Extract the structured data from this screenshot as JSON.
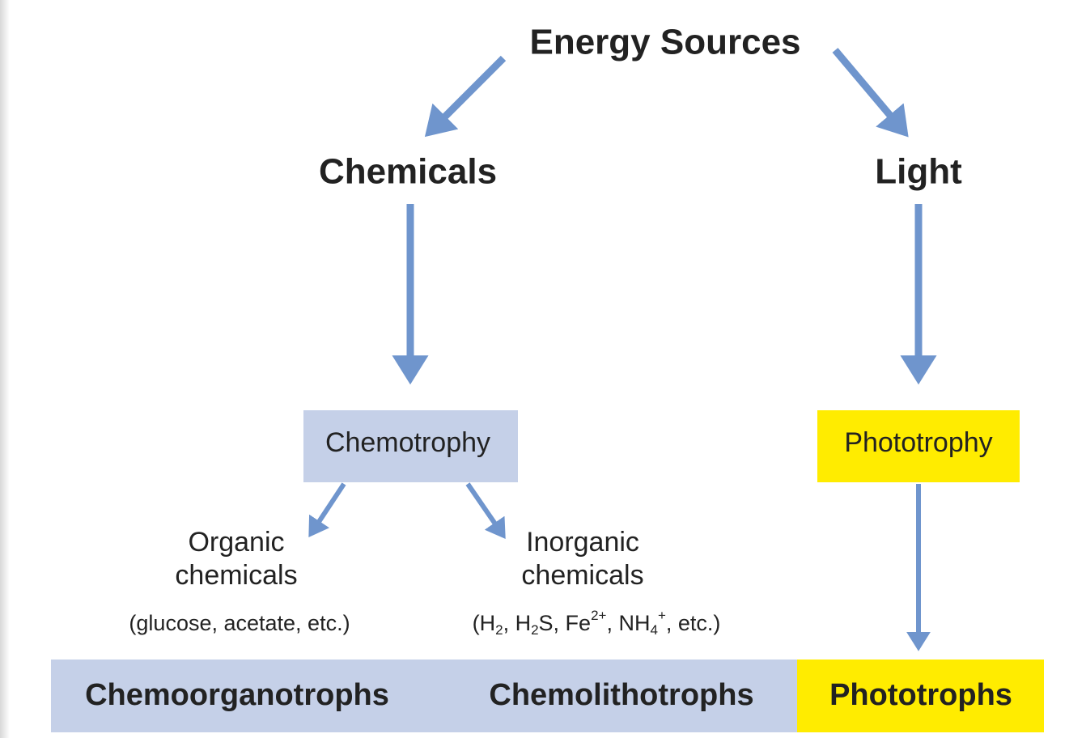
{
  "title": "Energy Sources",
  "sources": [
    {
      "label": "Chemicals"
    },
    {
      "label": "Light"
    }
  ],
  "trophy": [
    {
      "label": "Chemotrophy"
    },
    {
      "label": "Phototrophy"
    }
  ],
  "chemical_types": [
    {
      "label_lines": [
        "Organic",
        "chemicals"
      ],
      "examples": "(glucose, acetate, etc.)"
    },
    {
      "label_lines": [
        "Inorganic",
        "chemicals"
      ],
      "examples_parts": [
        "(H",
        "2",
        ", H",
        "2",
        "S, Fe",
        "2+",
        ", NH",
        "4",
        "+",
        ", etc.)"
      ]
    }
  ],
  "groups": [
    "Chemoorganotrophs",
    "Chemolithotrophs",
    "Phototrophs"
  ]
}
